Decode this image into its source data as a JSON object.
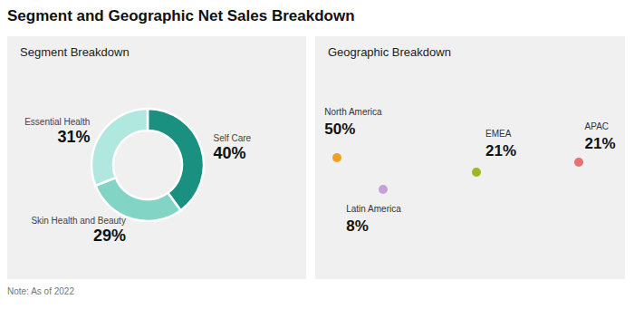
{
  "title": "Segment and Geographic Net Sales Breakdown",
  "annotations": [
    "Note: As of 2022"
  ],
  "chart_data": [
    {
      "type": "pie",
      "title": "Segment Breakdown",
      "categories": [
        "Self Care",
        "Skin Health and Beauty",
        "Essential Health"
      ],
      "values": [
        40,
        29,
        31
      ],
      "value_labels": [
        "40%",
        "29%",
        "31%"
      ],
      "colors": [
        "#1a9080",
        "#82d4c4",
        "#b0e8e0"
      ],
      "data_labels": true
    },
    {
      "type": "map",
      "title": "Geographic Breakdown",
      "categories": [
        "North America",
        "Latin America",
        "EMEA",
        "APAC"
      ],
      "values": [
        50,
        8,
        21,
        21
      ],
      "value_labels": [
        "50%",
        "8%",
        "21%",
        "21%"
      ],
      "colors": [
        "#f0a020",
        "#c8a0d8",
        "#a0b820",
        "#e87070"
      ],
      "data_labels": true
    }
  ]
}
